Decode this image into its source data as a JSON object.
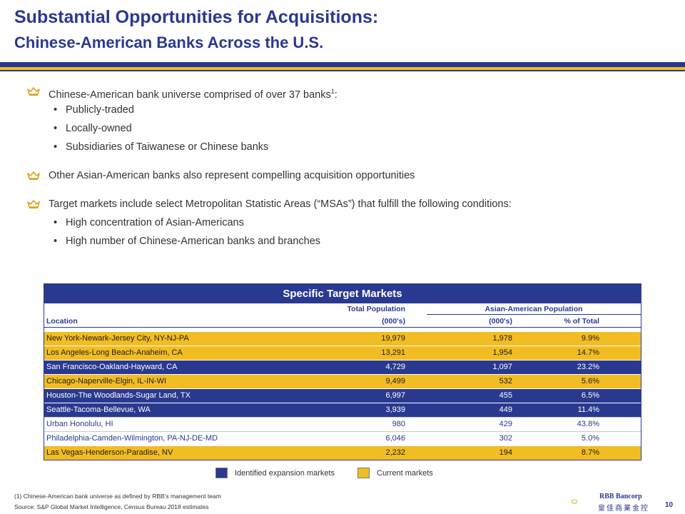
{
  "title": {
    "line1": "Substantial Opportunities for Acquisitions:",
    "line2": "Chinese-American Banks Across the U.S."
  },
  "bullets": {
    "b1": "Chinese-American bank universe comprised of over 37 banks",
    "b1_sup": "1",
    "b1_end": ":",
    "b1_subs": [
      "Publicly-traded",
      "Locally-owned",
      "Subsidiaries of Taiwanese or Chinese banks"
    ],
    "b2": "Other Asian-American banks also represent compelling acquisition opportunities",
    "b3": "Target markets include select Metropolitan Statistic Areas (“MSAs”) that fulfill the following conditions:",
    "b3_subs": [
      "High concentration of Asian-Americans",
      "High number of Chinese-American banks and branches"
    ]
  },
  "table": {
    "title": "Specific Target Markets",
    "header": {
      "total_population": "Total Population",
      "asian_population": "Asian-American Population",
      "location": "Location",
      "thousands1": "(000's)",
      "thousands2": "(000's)",
      "pct_total": "% of Total"
    },
    "rows": [
      {
        "location": "New York-Newark-Jersey City, NY-NJ-PA",
        "total": "19,979",
        "asian": "1,978",
        "pct": "9.9%",
        "type": "gold"
      },
      {
        "location": "Los Angeles-Long Beach-Anaheim, CA",
        "total": "13,291",
        "asian": "1,954",
        "pct": "14.7%",
        "type": "gold"
      },
      {
        "location": "San Francisco-Oakland-Hayward, CA",
        "total": "4,729",
        "asian": "1,097",
        "pct": "23.2%",
        "type": "navy"
      },
      {
        "location": "Chicago-Naperville-Elgin, IL-IN-WI",
        "total": "9,499",
        "asian": "532",
        "pct": "5.6%",
        "type": "gold"
      },
      {
        "location": "Houston-The Woodlands-Sugar Land, TX",
        "total": "6,997",
        "asian": "455",
        "pct": "6.5%",
        "type": "navy"
      },
      {
        "location": "Seattle-Tacoma-Bellevue, WA",
        "total": "3,939",
        "asian": "449",
        "pct": "11.4%",
        "type": "navy"
      },
      {
        "location": "Urban Honolulu, HI",
        "total": "980",
        "asian": "429",
        "pct": "43.8%",
        "type": "white"
      },
      {
        "location": "Philadelphia-Camden-Wilmington, PA-NJ-DE-MD",
        "total": "6,046",
        "asian": "302",
        "pct": "5.0%",
        "type": "white"
      },
      {
        "location": "Las Vegas-Henderson-Paradise, NV",
        "total": "2,232",
        "asian": "194",
        "pct": "8.7%",
        "type": "gold"
      }
    ]
  },
  "legend": {
    "expansion": "Identified expansion markets",
    "current": "Current markets"
  },
  "footnotes": {
    "note1": "(1)    Chinese-American bank universe as defined by RBB's management team",
    "source": "Source: S&P Global Market Intelligence, Census Bureau 2018 estimates"
  },
  "brand": {
    "name": "RBB Bancorp",
    "chinese": "皇佳商業金控"
  },
  "page_number": "10",
  "colors": {
    "navy": "#2a3990",
    "gold": "#f2bd22"
  }
}
